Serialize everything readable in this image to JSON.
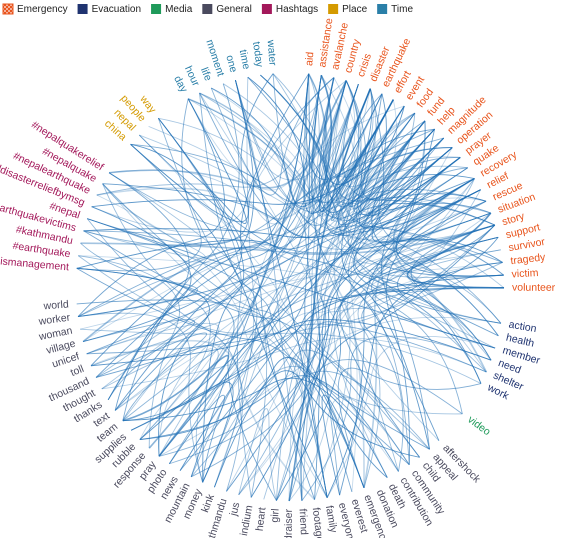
{
  "groups": [
    {
      "name": "Emergency",
      "color": "#e8541c",
      "nodes": [
        "aid",
        "assistance",
        "avalanche",
        "country",
        "crisis",
        "disaster",
        "earthquake",
        "effort",
        "event",
        "food",
        "fund",
        "help",
        "magnitude",
        "operation",
        "prayer",
        "quake",
        "recovery",
        "relief",
        "rescue",
        "situation",
        "story",
        "support",
        "survivor",
        "tragedy",
        "victim",
        "volunteer"
      ]
    },
    {
      "name": "Evacuation",
      "color": "#1f3370",
      "nodes": [
        "action",
        "health",
        "member",
        "need",
        "shelter",
        "work"
      ]
    },
    {
      "name": "Media",
      "color": "#1f9a5a",
      "nodes": [
        "video"
      ]
    },
    {
      "name": "General",
      "color": "#4a4a5e",
      "nodes": [
        "aftershock",
        "appeal",
        "child",
        "community",
        "contribution",
        "death",
        "donation",
        "emergency",
        "everest",
        "everyone",
        "family",
        "footage",
        "friend",
        "fundraiser",
        "girl",
        "heart",
        "indium",
        "jus",
        "kathmandu",
        "kink",
        "money",
        "mountain",
        "news",
        "photo",
        "pray",
        "response",
        "rubble",
        "supplies",
        "team",
        "text",
        "thanks",
        "thought",
        "thousand",
        "toll",
        "unicef",
        "village",
        "woman",
        "worker",
        "world"
      ]
    },
    {
      "name": "Hashtags",
      "color": "#a3185a",
      "nodes": [
        "#crisismanagement",
        "#earthquake",
        "#kathmandu",
        "#msghelpearthquakevictims",
        "#nepal",
        "#nepaldisasterreliefbymsg",
        "#nepalearthquake",
        "#nepalquake",
        "#nepalquakerelief"
      ]
    },
    {
      "name": "Place",
      "color": "#d49a00",
      "nodes": [
        "china",
        "nepal",
        "people",
        "way"
      ]
    },
    {
      "name": "Time",
      "color": "#2a7fa8",
      "nodes": [
        "day",
        "hour",
        "life",
        "moment",
        "one",
        "time",
        "today",
        "water"
      ]
    }
  ]
}
